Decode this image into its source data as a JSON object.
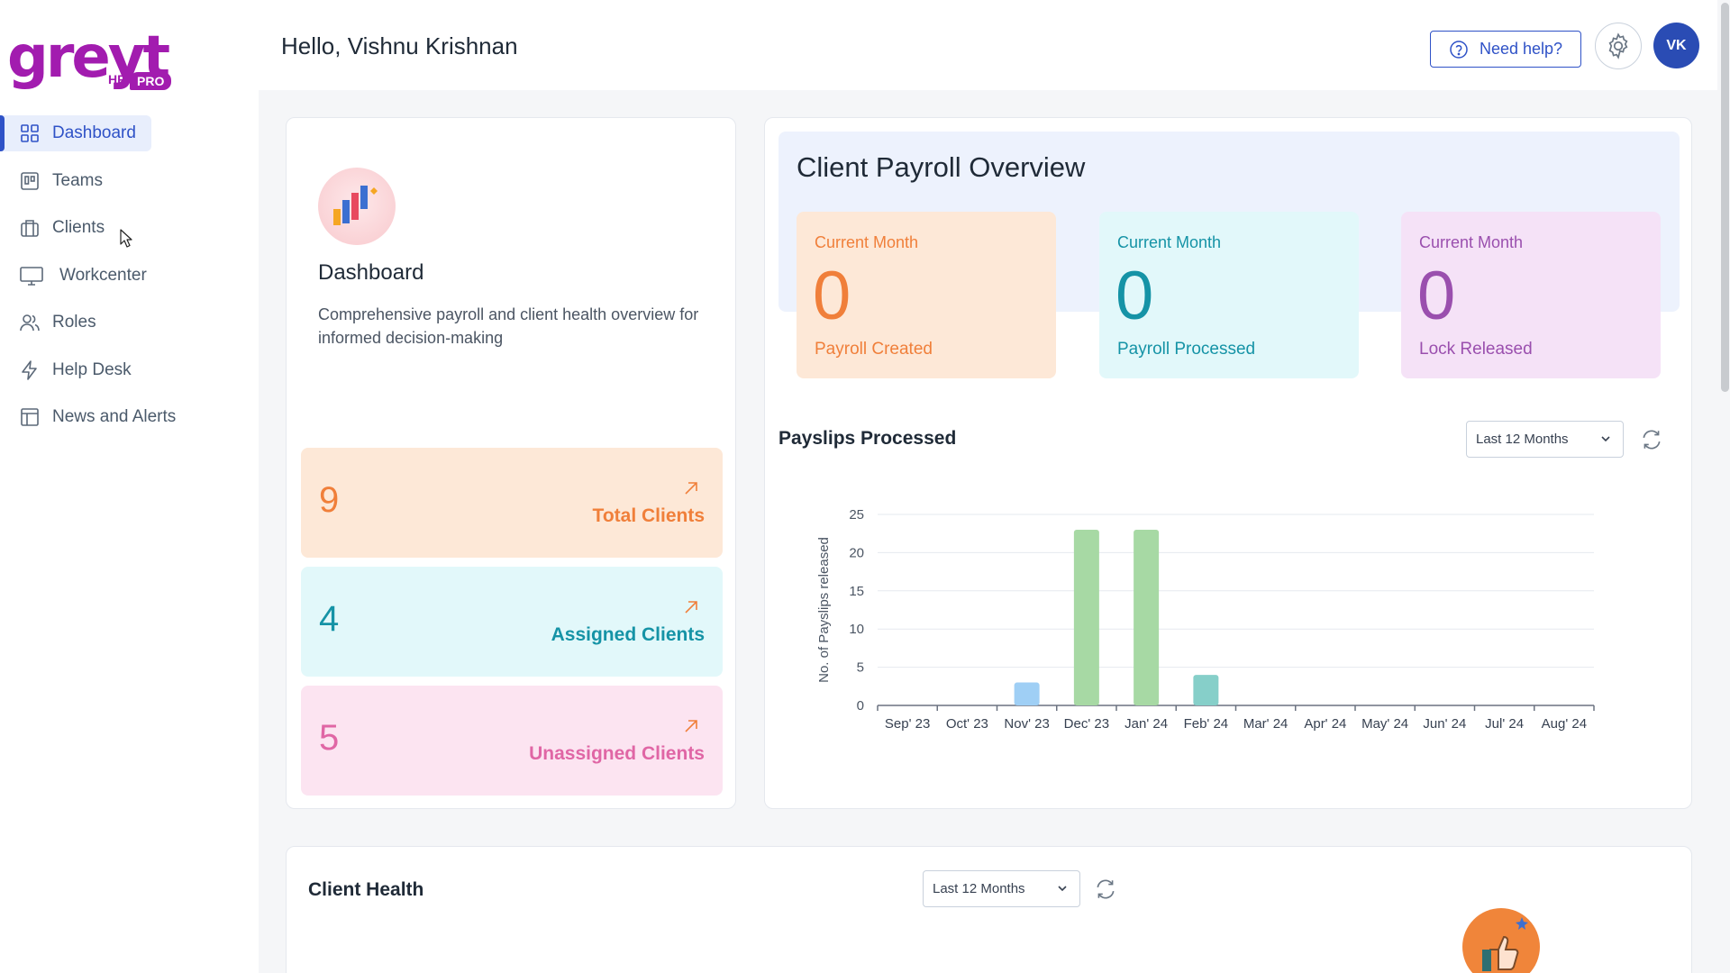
{
  "app": {
    "logo_text": "greyt",
    "logo_hr": "HR",
    "logo_pro": "PRO",
    "brand_color": "#a21caf",
    "accent_color": "#2f52c7"
  },
  "sidebar": {
    "items": [
      {
        "label": "Dashboard",
        "icon": "dashboard-grid-icon",
        "active": true
      },
      {
        "label": "Teams",
        "icon": "teams-board-icon"
      },
      {
        "label": "Clients",
        "icon": "briefcase-icon"
      },
      {
        "label": "Workcenter",
        "icon": "monitor-icon"
      },
      {
        "label": "Roles",
        "icon": "users-icon"
      },
      {
        "label": "Help Desk",
        "icon": "lightning-icon"
      },
      {
        "label": "News and Alerts",
        "icon": "news-layout-icon"
      }
    ]
  },
  "header": {
    "greeting": "Hello, Vishnu Krishnan",
    "help_label": "Need help?",
    "avatar_initials": "VK"
  },
  "dashboard_card": {
    "title": "Dashboard",
    "description": "Comprehensive payroll and client health overview for informed decision-making",
    "stats": [
      {
        "value": "9",
        "label": "Total Clients"
      },
      {
        "value": "4",
        "label": "Assigned Clients"
      },
      {
        "value": "5",
        "label": "Unassigned Clients"
      }
    ]
  },
  "payroll": {
    "title": "Client Payroll Overview",
    "metrics": [
      {
        "caption": "Current Month",
        "value": "0",
        "label": "Payroll Created"
      },
      {
        "caption": "Current Month",
        "value": "0",
        "label": "Payroll Processed"
      },
      {
        "caption": "Current Month",
        "value": "0",
        "label": "Lock Released"
      }
    ]
  },
  "payslips": {
    "title": "Payslips Processed",
    "range": "Last 12 Months"
  },
  "client_health": {
    "title": "Client Health",
    "range": "Last 12 Months"
  },
  "chart_data": {
    "type": "bar",
    "title": "",
    "xlabel": "",
    "ylabel": "No. of Payslips released",
    "categories": [
      "Sep' 23",
      "Oct' 23",
      "Nov' 23",
      "Dec' 23",
      "Jan' 24",
      "Feb' 24",
      "Mar' 24",
      "Apr' 24",
      "May' 24",
      "Jun' 24",
      "Jul' 24",
      "Aug' 24"
    ],
    "values": [
      0,
      0,
      3,
      23,
      23,
      4,
      0,
      0,
      0,
      0,
      0,
      0
    ],
    "bar_colors": [
      "#9fcff5",
      "#9fcff5",
      "#9fcff5",
      "#a7d9a4",
      "#a7d9a4",
      "#86cfc9",
      "#a7d9a4",
      "#a7d9a4",
      "#a7d9a4",
      "#a7d9a4",
      "#a7d9a4",
      "#a7d9a4"
    ],
    "yticks": [
      0,
      5,
      10,
      15,
      20,
      25
    ],
    "ylim": [
      0,
      25
    ],
    "grid": true,
    "legend": "none"
  }
}
